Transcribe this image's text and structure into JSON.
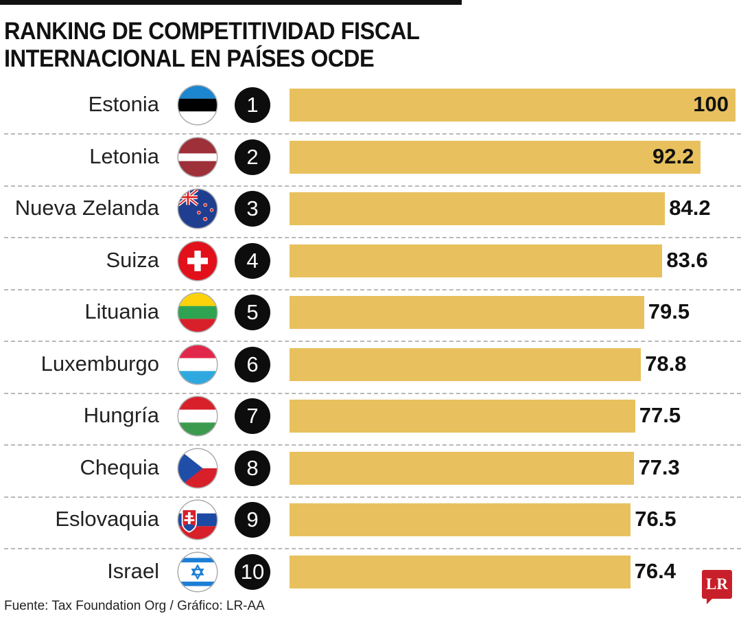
{
  "title_line1": "RANKING DE COMPETITIVIDAD FISCAL",
  "title_line2": "INTERNACIONAL EN PAÍSES OCDE",
  "source": "Fuente: Tax Foundation Org / Gráfico: LR-AA",
  "logo": "LR",
  "colors": {
    "bar": "#e8c15e",
    "rank_badge": "#0d0d0d",
    "logo": "#c8202a"
  },
  "chart_data": {
    "type": "bar",
    "orientation": "horizontal",
    "title": "RANKING DE COMPETITIVIDAD FISCAL INTERNACIONAL EN PAÍSES OCDE",
    "categories": [
      "Estonia",
      "Letonia",
      "Nueva Zelanda",
      "Suiza",
      "Lituania",
      "Luxemburgo",
      "Hungría",
      "Chequia",
      "Eslovaquia",
      "Israel"
    ],
    "ranks": [
      "1",
      "2",
      "3",
      "4",
      "5",
      "6",
      "7",
      "8",
      "9",
      "10"
    ],
    "values": [
      100,
      92.2,
      84.2,
      83.6,
      79.5,
      78.8,
      77.5,
      77.3,
      76.5,
      76.4
    ],
    "labels": [
      "100",
      "92.2",
      "84.2",
      "83.6",
      "79.5",
      "78.8",
      "77.5",
      "77.3",
      "76.5",
      "76.4"
    ],
    "flags": [
      "estonia-flag",
      "latvia-flag",
      "new-zealand-flag",
      "switzerland-flag",
      "lithuania-flag",
      "luxembourg-flag",
      "hungary-flag",
      "czechia-flag",
      "slovakia-flag",
      "israel-flag"
    ],
    "xlim": [
      0,
      100
    ],
    "xlabel": "",
    "ylabel": "",
    "grid": false,
    "legend": "none"
  }
}
